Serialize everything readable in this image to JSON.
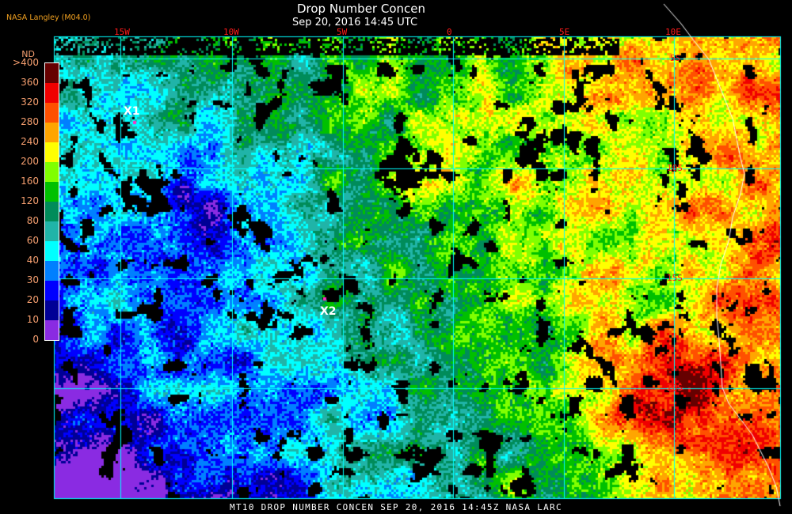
{
  "header": {
    "title": "Drop Number Concen",
    "subtitle": "Sep 20, 2016 14:45 UTC",
    "org": "NASA Langley (M04.0)"
  },
  "longitude_labels": [
    "15W",
    "10W",
    "5W",
    "0",
    "5E",
    "10E"
  ],
  "latitude_labels": [
    "5S",
    "10S",
    "15S",
    "20S"
  ],
  "legend": {
    "unit": "ND",
    "labels": [
      ">400",
      "360",
      "320",
      "280",
      "240",
      "200",
      "160",
      "120",
      "80",
      "60",
      "40",
      "30",
      "20",
      "10",
      "0"
    ],
    "colors": [
      "#660000",
      "#f00000",
      "#ff5000",
      "#ffa500",
      "#ffff00",
      "#80ff00",
      "#00c000",
      "#008c5a",
      "#20b4a8",
      "#00ffff",
      "#0080ff",
      "#0000ff",
      "#000096",
      "#8a2be2"
    ]
  },
  "markers": [
    {
      "label": "X1"
    },
    {
      "label": "X2"
    }
  ],
  "footer": "MT10  DROP NUMBER CONCEN  SEP 20, 2016 14:45Z  NASA LARC",
  "colors": {
    "grid": "#00ffff",
    "coast": "#ffffff",
    "marker": "#ff30c0"
  }
}
